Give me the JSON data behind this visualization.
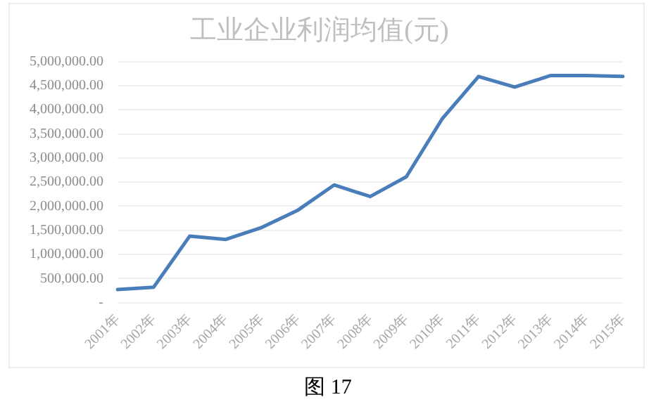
{
  "chart_data": {
    "type": "line",
    "title": "工业企业利润均值(元)",
    "categories": [
      "2001年",
      "2002年",
      "2003年",
      "2004年",
      "2005年",
      "2006年",
      "2007年",
      "2008年",
      "2009年",
      "2010年",
      "2011年",
      "2012年",
      "2013年",
      "2014年",
      "2015年"
    ],
    "series": [
      {
        "color": "#4a7ebb",
        "values": [
          270000,
          320000,
          1380000,
          1310000,
          1560000,
          1920000,
          2440000,
          2200000,
          2610000,
          3820000,
          4690000,
          4470000,
          4710000,
          4710000,
          4690000
        ]
      }
    ],
    "ylim": [
      0,
      5000000
    ],
    "yticks": [
      {
        "value": 0,
        "label": "-"
      },
      {
        "value": 500000,
        "label": "500,000.00"
      },
      {
        "value": 1000000,
        "label": "1,000,000.00"
      },
      {
        "value": 1500000,
        "label": "1,500,000.00"
      },
      {
        "value": 2000000,
        "label": "2,000,000.00"
      },
      {
        "value": 2500000,
        "label": "2,500,000.00"
      },
      {
        "value": 3000000,
        "label": "3,000,000.00"
      },
      {
        "value": 3500000,
        "label": "3,500,000.00"
      },
      {
        "value": 4000000,
        "label": "4,000,000.00"
      },
      {
        "value": 4500000,
        "label": "4,500,000.00"
      },
      {
        "value": 5000000,
        "label": "5,000,000.00"
      }
    ],
    "grid": "y",
    "legend": false,
    "marker": "none",
    "line_style": "solid",
    "annotations": [
      "图 17"
    ]
  }
}
